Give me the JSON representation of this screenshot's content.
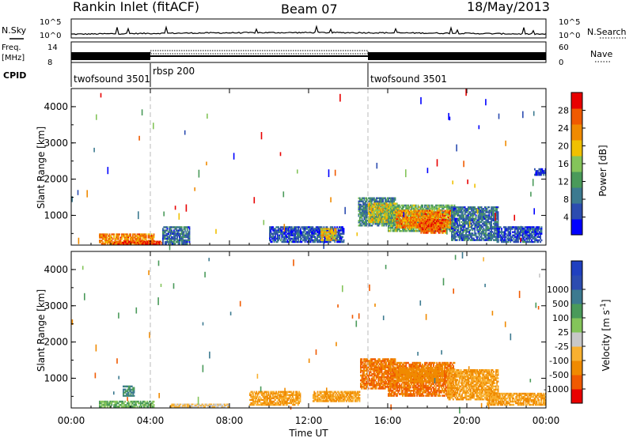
{
  "header": {
    "title": "Rankin Inlet (fitACF)",
    "beam": "Beam 07",
    "date": "18/May/2013"
  },
  "status_panels": {
    "nsky_label": "N.Sky",
    "nsearch_label": "N.Search",
    "log_ticks": [
      "10^5",
      "10^0"
    ],
    "freq_label": "Freq.",
    "freq_unit": "[MHz]",
    "freq_ticks": [
      14,
      8
    ],
    "nave_label": "Nave",
    "nave_ticks": [
      60,
      0
    ],
    "cpid_label": "CPID",
    "cpid_segments": [
      {
        "label": "twofsound 3501",
        "start_hour": 0.0,
        "end_hour": 4.0
      },
      {
        "label": "rbsp 200",
        "start_hour": 4.0,
        "end_hour": 15.0
      },
      {
        "label": "twofsound 3501",
        "start_hour": 15.0,
        "end_hour": 24.0
      }
    ]
  },
  "colors": {
    "power_scale": [
      "#0000ff",
      "#2c4cb0",
      "#3c7a90",
      "#4a9a5a",
      "#84c45a",
      "#f0c000",
      "#f08a00",
      "#f05a00",
      "#e80000"
    ],
    "velocity_scale": [
      "#e80000",
      "#f05a00",
      "#f08a00",
      "#f8b030",
      "#c8c8c8",
      "#84c45a",
      "#4a9a5a",
      "#3c7a90",
      "#2c4cb0",
      "#2040c0"
    ]
  },
  "chart_data": [
    {
      "type": "heatmap",
      "name": "power",
      "xlabel": "",
      "ylabel": "Slant Range [km]",
      "xlim": [
        0,
        24
      ],
      "ylim": [
        180,
        4500
      ],
      "yticks": [
        1000,
        2000,
        3000,
        4000
      ],
      "colorbar_label": "Power [dB]",
      "colorbar_ticks": [
        4,
        8,
        12,
        16,
        20,
        24,
        28
      ],
      "colorbar_range": [
        0,
        32
      ],
      "mode_change_hours": [
        4.0,
        15.0
      ],
      "regions": [
        {
          "h0": 1.4,
          "h1": 4.2,
          "r0": 200,
          "r1": 500,
          "value": 24
        },
        {
          "h0": 2.0,
          "h1": 4.6,
          "r0": 200,
          "r1": 300,
          "value": 28
        },
        {
          "h0": 4.6,
          "h1": 6.0,
          "r0": 200,
          "r1": 700,
          "value": 8
        },
        {
          "h0": 10.0,
          "h1": 13.8,
          "r0": 250,
          "r1": 700,
          "value": 6
        },
        {
          "h0": 12.6,
          "h1": 13.4,
          "r0": 300,
          "r1": 650,
          "value": 20
        },
        {
          "h0": 14.5,
          "h1": 16.4,
          "r0": 700,
          "r1": 1500,
          "value": 10
        },
        {
          "h0": 15.0,
          "h1": 16.6,
          "r0": 800,
          "r1": 1350,
          "value": 18
        },
        {
          "h0": 16.0,
          "h1": 19.4,
          "r0": 550,
          "r1": 1300,
          "value": 14
        },
        {
          "h0": 16.4,
          "h1": 19.2,
          "r0": 650,
          "r1": 1150,
          "value": 24
        },
        {
          "h0": 17.6,
          "h1": 19.0,
          "r0": 500,
          "r1": 900,
          "value": 26
        },
        {
          "h0": 19.2,
          "h1": 21.6,
          "r0": 300,
          "r1": 1250,
          "value": 8
        },
        {
          "h0": 21.5,
          "h1": 23.8,
          "r0": 250,
          "r1": 700,
          "value": 6
        },
        {
          "h0": 23.4,
          "h1": 24.0,
          "r0": 2100,
          "r1": 2300,
          "value": 4
        }
      ]
    },
    {
      "type": "heatmap",
      "name": "velocity",
      "xlabel": "Time UT",
      "ylabel": "Slant Range [km]",
      "xlim": [
        0,
        24
      ],
      "ylim": [
        180,
        4500
      ],
      "yticks": [
        1000,
        2000,
        3000,
        4000
      ],
      "xtick_labels": [
        "00:00",
        "04:00",
        "08:00",
        "12:00",
        "16:00",
        "20:00",
        "00:00"
      ],
      "xtick_hours": [
        0,
        4,
        8,
        12,
        16,
        20,
        24
      ],
      "colorbar_label": "Velocity [m s^-1]",
      "colorbar_ticks": [
        "-1000",
        "-500",
        "-100",
        "-25",
        "25",
        "100",
        "500",
        "1000"
      ],
      "mode_change_hours": [
        4.0,
        15.0
      ],
      "regions": [
        {
          "h0": 1.4,
          "h1": 4.2,
          "r0": 200,
          "r1": 380,
          "value": 100
        },
        {
          "h0": 2.6,
          "h1": 3.2,
          "r0": 500,
          "r1": 800,
          "value": 500
        },
        {
          "h0": 9.0,
          "h1": 11.6,
          "r0": 250,
          "r1": 650,
          "value": -100
        },
        {
          "h0": 12.2,
          "h1": 14.6,
          "r0": 350,
          "r1": 650,
          "value": -100
        },
        {
          "h0": 14.6,
          "h1": 16.4,
          "r0": 700,
          "r1": 1550,
          "value": -500
        },
        {
          "h0": 16.0,
          "h1": 19.4,
          "r0": 500,
          "r1": 1450,
          "value": -500
        },
        {
          "h0": 16.4,
          "h1": 18.8,
          "r0": 900,
          "r1": 1300,
          "value": -300
        },
        {
          "h0": 19.0,
          "h1": 21.6,
          "r0": 400,
          "r1": 1250,
          "value": -100
        },
        {
          "h0": 21.0,
          "h1": 24.0,
          "r0": 250,
          "r1": 600,
          "value": -100
        },
        {
          "h0": 5.0,
          "h1": 8.0,
          "r0": 200,
          "r1": 300,
          "value": -25
        }
      ]
    }
  ]
}
